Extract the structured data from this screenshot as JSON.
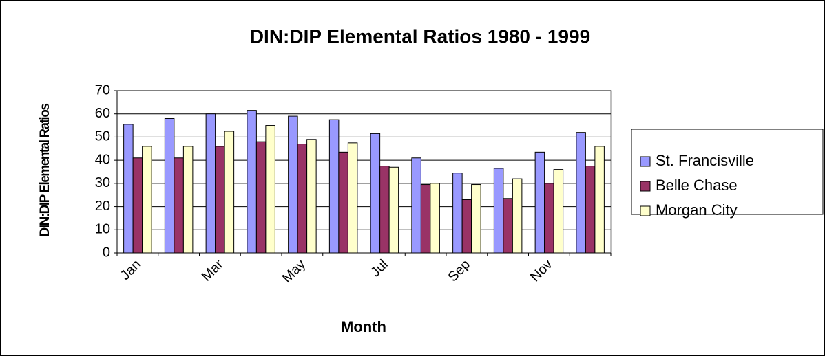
{
  "chart_data": {
    "type": "bar",
    "title": "DIN:DIP Elemental Ratios  1980 - 1999",
    "x_label": "Month",
    "y_label": "DIN:DIP Elemental Ratios",
    "categories": [
      "Jan",
      null,
      "Mar",
      null,
      "May",
      null,
      "Jul",
      null,
      "Sep",
      null,
      "Nov",
      null
    ],
    "series": [
      {
        "name": "St. Francisville",
        "color": "#9999ff",
        "values": [
          55.5,
          58,
          60,
          61.5,
          59,
          57.5,
          51.5,
          41,
          34.5,
          36.5,
          43.5,
          52
        ]
      },
      {
        "name": "Belle Chase",
        "color": "#993366",
        "values": [
          41,
          41,
          46,
          48,
          47,
          43.5,
          37.5,
          29.5,
          23,
          23.5,
          30,
          37.5
        ]
      },
      {
        "name": "Morgan City",
        "color": "#ffffcc",
        "values": [
          46,
          46,
          52.5,
          55,
          49,
          47.5,
          37,
          30,
          29.5,
          32,
          36,
          46
        ]
      }
    ],
    "ylim": [
      0,
      70
    ],
    "yticks": [
      0,
      10,
      20,
      30,
      40,
      50,
      60,
      70
    ],
    "grid": true,
    "legend": "right"
  }
}
